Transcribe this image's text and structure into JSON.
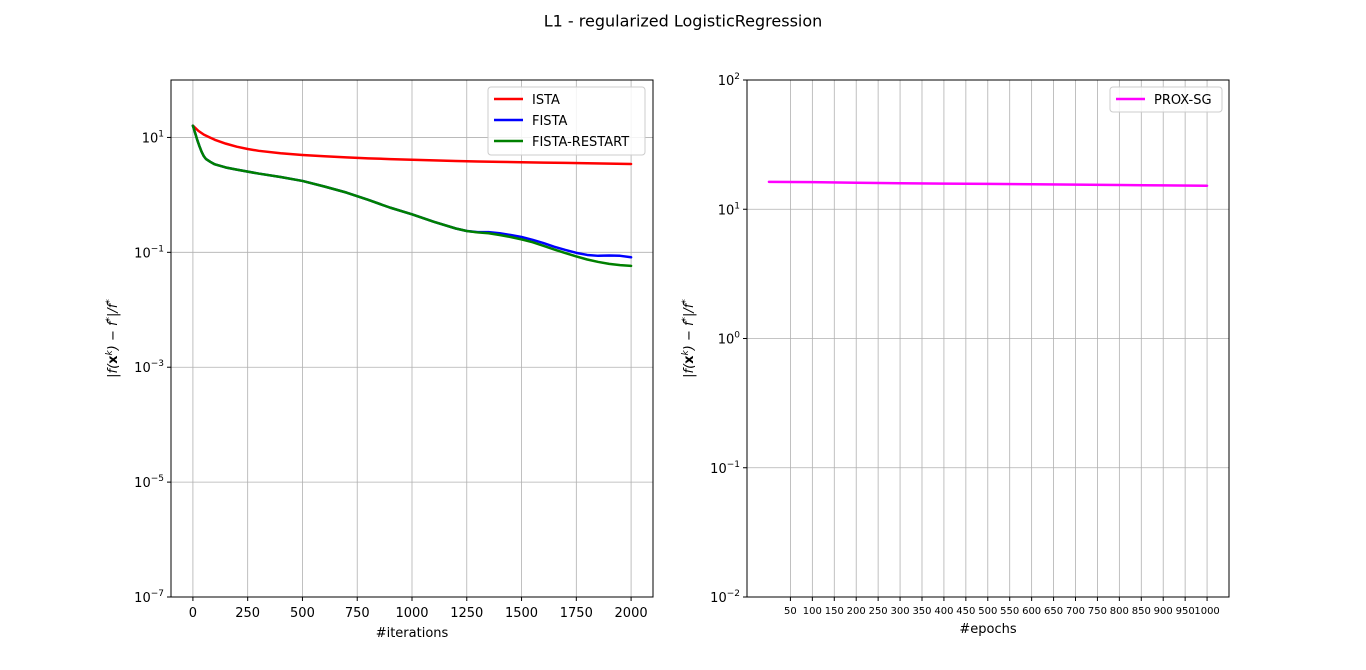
{
  "figure": {
    "suptitle": "L1 - regularized LogisticRegression"
  },
  "chart_data": [
    {
      "type": "line",
      "xlabel": "#iterations",
      "ylabel": "|f(x^k) − f*|/f*",
      "ylabel_parts": {
        "a": "|f(",
        "b": "x",
        "c": "k",
        "d": ") − f",
        "e": "*",
        "f": "|/f",
        "g": "*"
      },
      "yscale": "log",
      "xlim": [
        -100,
        2100
      ],
      "ylim": [
        1e-07,
        100
      ],
      "grid": true,
      "legend_position": "top-right",
      "xticks": [
        0,
        250,
        500,
        750,
        1000,
        1250,
        1500,
        1750,
        2000
      ],
      "xtick_labels": [
        "0",
        "250",
        "500",
        "750",
        "1000",
        "1250",
        "1500",
        "1750",
        "2000"
      ],
      "yticks": [
        {
          "value": 1e-07,
          "base": "10",
          "exp": "−7"
        },
        {
          "value": 1e-05,
          "base": "10",
          "exp": "−5"
        },
        {
          "value": 0.001,
          "base": "10",
          "exp": "−3"
        },
        {
          "value": 0.1,
          "base": "10",
          "exp": "−1"
        },
        {
          "value": 10,
          "base": "10",
          "exp": "1"
        }
      ],
      "series": [
        {
          "name": "ISTA",
          "color": "#ff0000",
          "x": [
            0,
            25,
            50,
            75,
            100,
            150,
            200,
            250,
            300,
            400,
            500,
            600,
            700,
            800,
            900,
            1000,
            1100,
            1200,
            1300,
            1400,
            1500,
            1600,
            1700,
            1800,
            1900,
            2000
          ],
          "y": [
            16,
            13,
            11.2,
            10.1,
            9.1,
            7.8,
            6.9,
            6.3,
            5.85,
            5.3,
            4.95,
            4.7,
            4.5,
            4.33,
            4.2,
            4.08,
            3.98,
            3.9,
            3.82,
            3.75,
            3.7,
            3.64,
            3.6,
            3.55,
            3.5,
            3.45
          ]
        },
        {
          "name": "FISTA",
          "color": "#0000ff",
          "x": [
            0,
            10,
            20,
            30,
            40,
            50,
            60,
            80,
            100,
            150,
            200,
            300,
            400,
            500,
            600,
            700,
            800,
            900,
            1000,
            1100,
            1200,
            1250,
            1300,
            1350,
            1400,
            1450,
            1500,
            1550,
            1600,
            1650,
            1700,
            1750,
            1800,
            1850,
            1900,
            1950,
            2000
          ],
          "y": [
            16,
            12,
            9,
            7,
            5.6,
            4.7,
            4.2,
            3.75,
            3.4,
            3.0,
            2.75,
            2.35,
            2.05,
            1.75,
            1.4,
            1.1,
            0.82,
            0.6,
            0.46,
            0.34,
            0.26,
            0.235,
            0.225,
            0.225,
            0.215,
            0.2,
            0.185,
            0.165,
            0.145,
            0.125,
            0.11,
            0.098,
            0.09,
            0.087,
            0.088,
            0.087,
            0.082
          ]
        },
        {
          "name": "FISTA-RESTART",
          "color": "#008000",
          "x": [
            0,
            10,
            20,
            30,
            40,
            50,
            60,
            80,
            100,
            150,
            200,
            300,
            400,
            500,
            600,
            700,
            800,
            900,
            1000,
            1100,
            1200,
            1250,
            1300,
            1350,
            1400,
            1450,
            1500,
            1550,
            1600,
            1650,
            1700,
            1750,
            1800,
            1850,
            1900,
            1950,
            2000
          ],
          "y": [
            16,
            12,
            9,
            7,
            5.6,
            4.7,
            4.2,
            3.75,
            3.4,
            3.0,
            2.75,
            2.35,
            2.05,
            1.75,
            1.4,
            1.1,
            0.82,
            0.6,
            0.46,
            0.34,
            0.26,
            0.235,
            0.222,
            0.215,
            0.2,
            0.185,
            0.168,
            0.15,
            0.13,
            0.112,
            0.097,
            0.085,
            0.075,
            0.068,
            0.063,
            0.06,
            0.058
          ]
        }
      ]
    },
    {
      "type": "line",
      "xlabel": "#epochs",
      "ylabel": "|f(x^k) − f*|/f*",
      "ylabel_parts": {
        "a": "|f(",
        "b": "x",
        "c": "k",
        "d": ") − f",
        "e": "*",
        "f": "|/f",
        "g": "*"
      },
      "yscale": "log",
      "xlim": [
        -49,
        1050
      ],
      "ylim": [
        0.01,
        100
      ],
      "grid": true,
      "legend_position": "top-right",
      "xticks": [
        50,
        100,
        150,
        200,
        250,
        300,
        350,
        400,
        450,
        500,
        550,
        600,
        650,
        700,
        750,
        800,
        850,
        900,
        950,
        1000
      ],
      "xtick_labels": [
        "50",
        "100",
        "150",
        "200",
        "250",
        "300",
        "350",
        "400",
        "450",
        "500",
        "550",
        "600",
        "650",
        "700",
        "750",
        "800",
        "850",
        "900",
        "950",
        "1000"
      ],
      "yticks": [
        {
          "value": 0.01,
          "base": "10",
          "exp": "−2"
        },
        {
          "value": 0.1,
          "base": "10",
          "exp": "−1"
        },
        {
          "value": 1,
          "base": "10",
          "exp": "0"
        },
        {
          "value": 10,
          "base": "10",
          "exp": "1"
        },
        {
          "value": 100,
          "base": "10",
          "exp": "2"
        }
      ],
      "series": [
        {
          "name": "PROX-SG",
          "color": "#ff00ff",
          "x": [
            1,
            100,
            200,
            300,
            400,
            500,
            600,
            700,
            800,
            900,
            1000
          ],
          "y": [
            16.3,
            16.2,
            16.05,
            15.9,
            15.8,
            15.7,
            15.6,
            15.5,
            15.4,
            15.3,
            15.2
          ]
        }
      ]
    }
  ]
}
